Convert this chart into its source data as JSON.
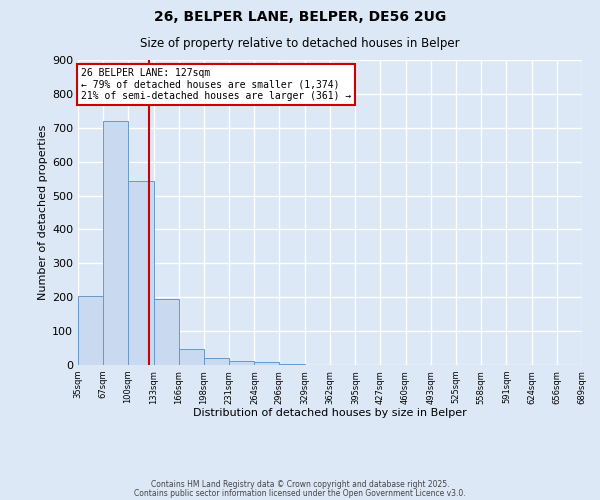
{
  "title": "26, BELPER LANE, BELPER, DE56 2UG",
  "subtitle": "Size of property relative to detached houses in Belper",
  "xlabel": "Distribution of detached houses by size in Belper",
  "ylabel": "Number of detached properties",
  "bar_edges": [
    35,
    67,
    100,
    133,
    166,
    198,
    231,
    264,
    296,
    329,
    362,
    395,
    427,
    460,
    493,
    525,
    558,
    591,
    624,
    656,
    689
  ],
  "bar_heights": [
    204,
    720,
    543,
    196,
    47,
    20,
    13,
    8,
    3,
    0,
    0,
    0,
    1,
    0,
    0,
    0,
    0,
    0,
    0,
    0
  ],
  "bar_color": "#c9d9f0",
  "bar_edge_color": "#6699cc",
  "property_size": 127,
  "vline_color": "#cc0000",
  "annotation_title": "26 BELPER LANE: 127sqm",
  "annotation_line1": "← 79% of detached houses are smaller (1,374)",
  "annotation_line2": "21% of semi-detached houses are larger (361) →",
  "annotation_box_color": "#ffffff",
  "annotation_box_edge": "#cc0000",
  "ylim": [
    0,
    900
  ],
  "yticks": [
    0,
    100,
    200,
    300,
    400,
    500,
    600,
    700,
    800,
    900
  ],
  "footer1": "Contains HM Land Registry data © Crown copyright and database right 2025.",
  "footer2": "Contains public sector information licensed under the Open Government Licence v3.0.",
  "bg_color": "#dce8f5",
  "grid_color": "#ffffff"
}
